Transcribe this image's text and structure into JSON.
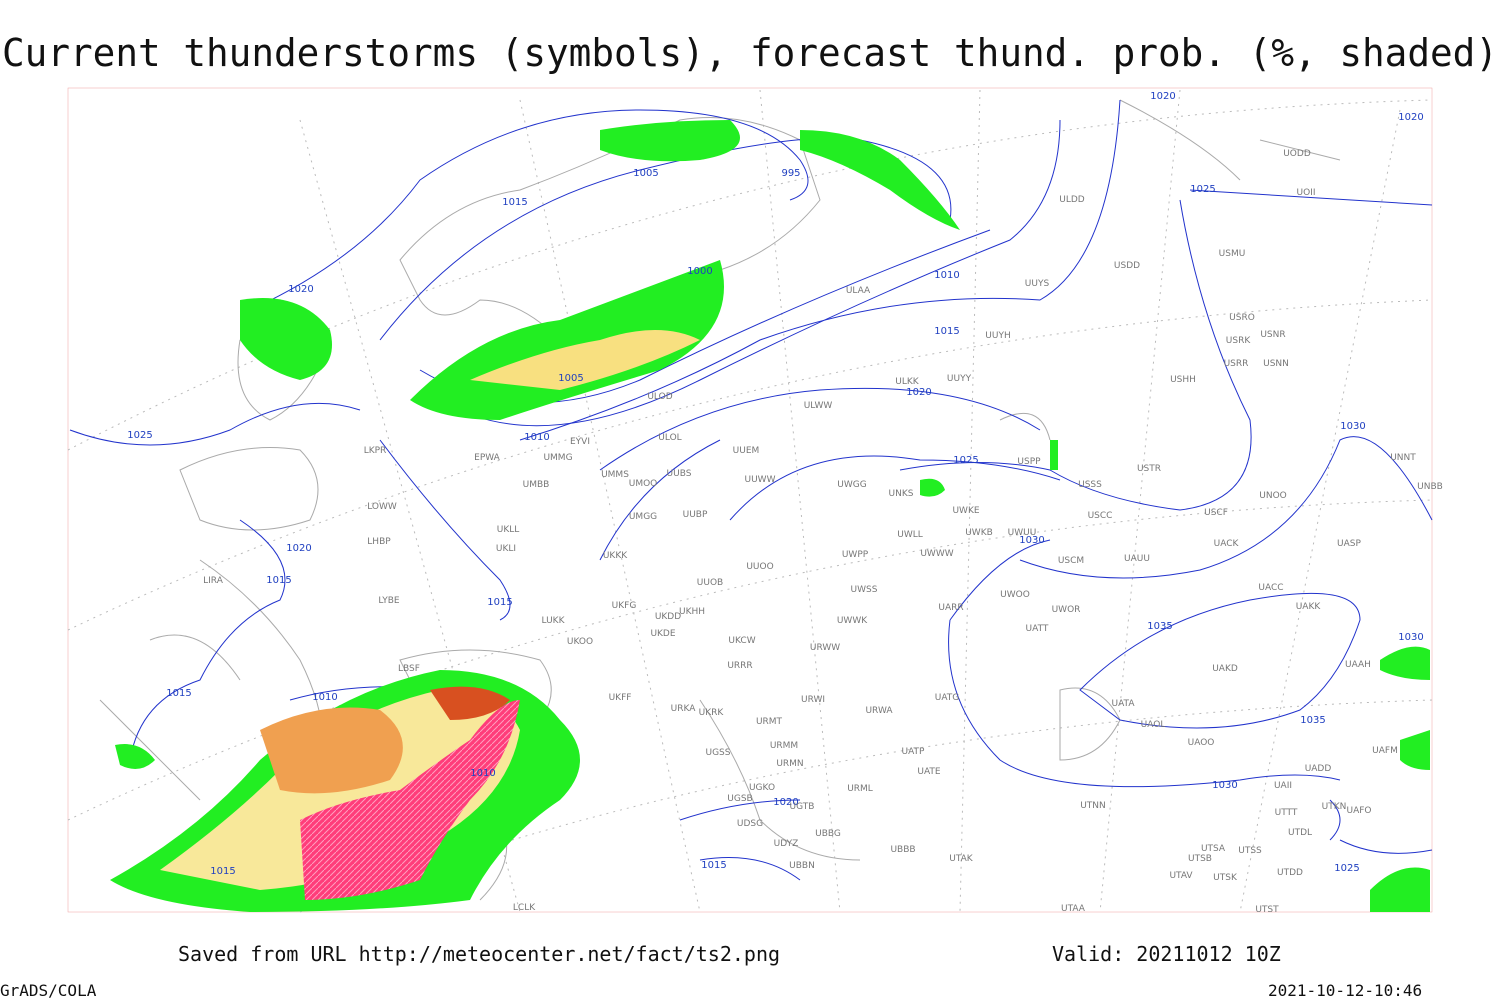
{
  "title": "Current thunderstorms (symbols), forecast thund. prob. (%, shaded)",
  "footer": {
    "source": "Saved from URL http://meteocenter.net/fact/ts2.png",
    "valid": "Valid: 20211012 10Z",
    "software": "GrADS/COLA",
    "timestamp": "2021-10-12-10:46"
  },
  "isobar_labels": [
    "1020",
    "1020",
    "1005",
    "995",
    "1015",
    "1025",
    "1000",
    "1020",
    "1010",
    "1015",
    "1005",
    "1020",
    "1025",
    "1010",
    "1030",
    "1025",
    "1020",
    "1030",
    "1015",
    "1015",
    "1035",
    "1030",
    "1015",
    "1010",
    "1035",
    "1010",
    "1030",
    "1020",
    "1015",
    "1015",
    "1025"
  ],
  "stations": [
    "ULDD",
    "UODD",
    "UOII",
    "USMU",
    "USDD",
    "UUYS",
    "ULAA",
    "USRO",
    "USRK",
    "USNR",
    "USRR",
    "USNN",
    "UUYH",
    "USHH",
    "ULKK",
    "UUYY",
    "ULOD",
    "ULWW",
    "ULOL",
    "EYVI",
    "UUEM",
    "LKPR",
    "EPWA",
    "UMMG",
    "USPP",
    "USTR",
    "UNNT",
    "UMMS",
    "UMOO",
    "UUBS",
    "UUWW",
    "UWGG",
    "USSS",
    "UNBB",
    "UMBB",
    "UNKS",
    "UNOO",
    "LOWW",
    "UWKE",
    "USCC",
    "USCF",
    "UMGG",
    "UUBP",
    "UWKB",
    "UWUU",
    "UKLL",
    "LHBP",
    "UWLL",
    "UACK",
    "UASP",
    "UKLI",
    "UWWW",
    "UWPP",
    "USCM",
    "UAUU",
    "UKKK",
    "UUOO",
    "LIRA",
    "UUOB",
    "UWSS",
    "UACC",
    "LYBE",
    "UWOO",
    "UAKK",
    "UKHH",
    "UARR",
    "UWOR",
    "UKFG",
    "UKDD",
    "LUKK",
    "UATT",
    "UWWK",
    "UKDE",
    "UKOO",
    "UKCW",
    "URWW",
    "UAKD",
    "URRR",
    "LBSF",
    "UAAH",
    "UKFF",
    "UATG",
    "URWI",
    "UKRK",
    "URKA",
    "UATA",
    "URMT",
    "URWA",
    "UAOL",
    "UAFM",
    "UGSS",
    "URMM",
    "UAOO",
    "UATP",
    "URMN",
    "UADD",
    "UATE",
    "UGKO",
    "UAII",
    "URML",
    "UGSB",
    "UGTB",
    "UTTT",
    "UTKN",
    "UAFO",
    "UTNN",
    "UDSG",
    "UBBG",
    "UTDL",
    "UDYZ",
    "UBBB",
    "UTSA",
    "UTSS",
    "UBBN",
    "UTAK",
    "UTSB",
    "UTAV",
    "UTSK",
    "UTDD",
    "UTST",
    "UTAA",
    "LCLK"
  ]
}
